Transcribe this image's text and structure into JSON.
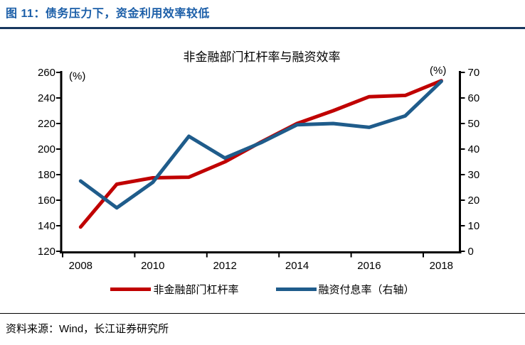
{
  "figure": {
    "title": "图 11：债务压力下，资金利用效率较低",
    "source": "资料来源：Wind，长江证券研究所"
  },
  "colors": {
    "header_text": "#1B5EA8",
    "header_rule": "#17375E",
    "axis": "#000000",
    "red_series": "#C00000",
    "blue_series": "#1F5C8B"
  },
  "chart_data": {
    "type": "line",
    "title": "非金融部门杠杆率与融资效率",
    "x": [
      2008,
      2009,
      2010,
      2011,
      2012,
      2013,
      2014,
      2015,
      2016,
      2017,
      2018
    ],
    "x_tick_labels": [
      "2008",
      "2010",
      "2012",
      "2014",
      "2016",
      "2018"
    ],
    "left_axis": {
      "unit": "(%)",
      "min": 120,
      "max": 260,
      "step": 20,
      "tick_labels": [
        "120",
        "140",
        "160",
        "180",
        "200",
        "220",
        "240",
        "260"
      ]
    },
    "right_axis": {
      "unit": "(%)",
      "min": 0,
      "max": 70,
      "step": 10,
      "tick_labels": [
        "0",
        "10",
        "20",
        "30",
        "40",
        "50",
        "60",
        "70"
      ]
    },
    "grid": false,
    "legend_position": "bottom",
    "series": [
      {
        "name": "非金融部门杠杆率",
        "axis": "left",
        "color": "#C00000",
        "values": [
          139,
          172.5,
          177.5,
          178,
          190,
          205.5,
          220,
          230,
          241,
          242,
          253.5
        ]
      },
      {
        "name": "融资付息率（右轴）",
        "axis": "right",
        "color": "#1F5C8B",
        "values": [
          27.5,
          17,
          27,
          45,
          36.5,
          42.5,
          49.5,
          50,
          48.5,
          53,
          66.5
        ]
      }
    ]
  }
}
